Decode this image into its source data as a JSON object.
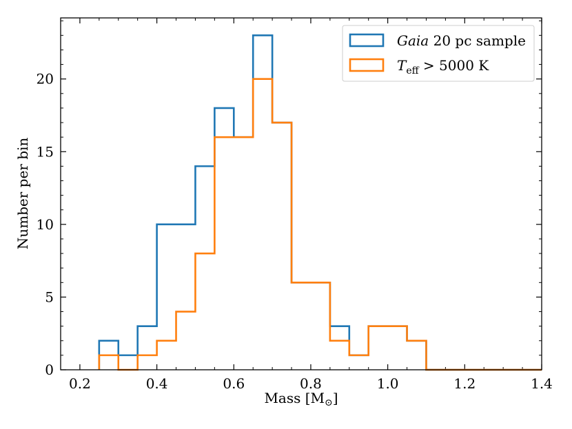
{
  "chart_data": {
    "type": "histogram",
    "xlabel": "Mass [M",
    "xlabel_symbol": "⊙",
    "xlabel_close": "]",
    "ylabel": "Number per bin",
    "xlim": [
      0.15,
      1.4
    ],
    "ylim": [
      0,
      24.2
    ],
    "xticks": [
      0.2,
      0.4,
      0.6,
      0.8,
      1.0,
      1.2,
      1.4
    ],
    "xtick_labels": [
      "0.2",
      "0.4",
      "0.6",
      "0.8",
      "1.0",
      "1.2",
      "1.4"
    ],
    "yticks": [
      0,
      5,
      10,
      15,
      20
    ],
    "ytick_labels": [
      "0",
      "5",
      "10",
      "15",
      "20"
    ],
    "bin_edges": [
      0.25,
      0.3,
      0.35,
      0.4,
      0.45,
      0.5,
      0.55,
      0.6,
      0.65,
      0.7,
      0.75,
      0.8,
      0.85,
      0.9,
      0.95,
      1.0,
      1.05,
      1.1,
      1.15,
      1.2,
      1.25,
      1.3,
      1.35,
      1.4
    ],
    "series": [
      {
        "name": "gaia",
        "color": "#1f77b4",
        "values": [
          2,
          1,
          3,
          10,
          10,
          14,
          18,
          16,
          23,
          17,
          6,
          6,
          3,
          1,
          3,
          3,
          2,
          0,
          0,
          0,
          0,
          0,
          0
        ]
      },
      {
        "name": "teff",
        "color": "#ff7f0e",
        "values": [
          1,
          0,
          1,
          2,
          4,
          8,
          16,
          16,
          20,
          17,
          6,
          6,
          2,
          1,
          3,
          3,
          2,
          0,
          0,
          0,
          0,
          0,
          0
        ]
      }
    ],
    "legend": {
      "position": "top-right",
      "entries": [
        {
          "italic": "Gaia",
          "text": " 20 pc sample",
          "color": "#1f77b4"
        },
        {
          "italic": "T",
          "sub": "eff",
          "text": " > 5000 K",
          "color": "#ff7f0e"
        }
      ]
    }
  }
}
